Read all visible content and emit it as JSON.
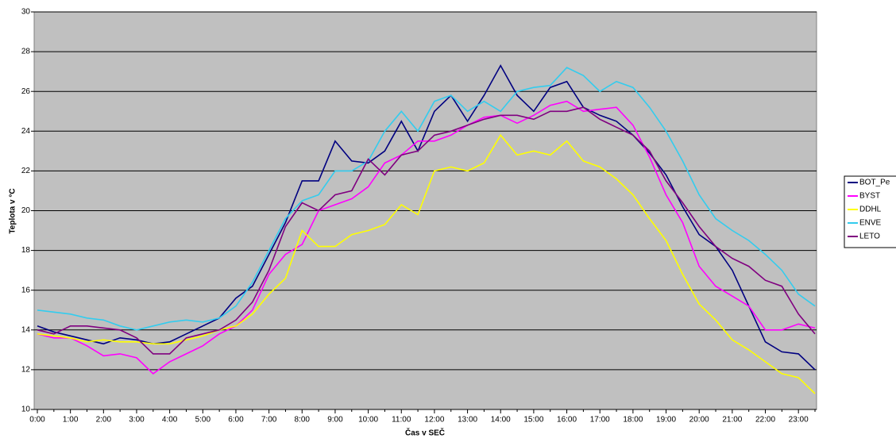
{
  "chart_data": {
    "type": "line",
    "x_label": "Čas v SEČ",
    "y_label": "Teplota v °C",
    "categories": [
      "0:00",
      null,
      "1:00",
      null,
      "2:00",
      null,
      "3:00",
      null,
      "4:00",
      null,
      "5:00",
      null,
      "6:00",
      null,
      "7:00",
      null,
      "8:00",
      null,
      "9:00",
      null,
      "10:00",
      null,
      "11:00",
      null,
      "12:00",
      null,
      "13:00",
      null,
      "14:00",
      null,
      "15:00",
      null,
      "16:00",
      null,
      "17:00",
      null,
      "18:00",
      null,
      "19:00",
      null,
      "20:00",
      null,
      "21:00",
      null,
      "22:00",
      null,
      "23:00",
      null
    ],
    "series": [
      {
        "name": "BOT_Pe",
        "color": "#000080",
        "values": [
          14.2,
          13.9,
          13.7,
          13.5,
          13.3,
          13.6,
          13.5,
          13.3,
          13.4,
          13.8,
          14.2,
          14.6,
          15.6,
          16.2,
          17.8,
          19.4,
          21.5,
          21.5,
          23.5,
          22.5,
          22.4,
          23.0,
          24.5,
          23.0,
          25.0,
          25.8,
          24.5,
          25.8,
          27.3,
          25.8,
          25.0,
          26.2,
          26.5,
          25.2,
          24.8,
          24.5,
          23.8,
          22.9,
          21.8,
          20.2,
          18.8,
          18.2,
          17.0,
          15.2,
          13.4,
          12.9,
          12.8,
          12.0
        ]
      },
      {
        "name": "BYST",
        "color": "#ff00ff",
        "values": [
          13.8,
          13.6,
          13.6,
          13.2,
          12.7,
          12.8,
          12.6,
          11.8,
          12.4,
          12.8,
          13.2,
          13.8,
          14.2,
          15.0,
          16.8,
          17.8,
          18.3,
          20.0,
          20.3,
          20.6,
          21.2,
          22.4,
          22.8,
          23.5,
          23.5,
          23.8,
          24.3,
          24.7,
          24.8,
          24.4,
          24.8,
          25.3,
          25.5,
          25.0,
          25.1,
          25.2,
          24.3,
          22.7,
          20.8,
          19.4,
          17.2,
          16.2,
          15.7,
          15.2,
          14.0,
          14.0,
          14.3,
          14.1
        ]
      },
      {
        "name": "DDHL",
        "color": "#ffff00",
        "values": [
          13.8,
          13.7,
          13.6,
          13.4,
          13.5,
          13.4,
          13.4,
          13.3,
          13.3,
          13.5,
          13.7,
          14.0,
          14.2,
          14.8,
          15.8,
          16.6,
          19.0,
          18.2,
          18.2,
          18.8,
          19.0,
          19.3,
          20.3,
          19.8,
          22.0,
          22.2,
          22.0,
          22.4,
          23.8,
          22.8,
          23.0,
          22.8,
          23.5,
          22.5,
          22.2,
          21.6,
          20.8,
          19.6,
          18.5,
          16.8,
          15.3,
          14.5,
          13.5,
          13.0,
          12.4,
          11.8,
          11.6,
          10.8
        ]
      },
      {
        "name": "ENVE",
        "color": "#33ccee",
        "values": [
          15.0,
          14.9,
          14.8,
          14.6,
          14.5,
          14.2,
          14.0,
          14.2,
          14.4,
          14.5,
          14.4,
          14.6,
          15.2,
          16.4,
          18.0,
          19.6,
          20.5,
          20.8,
          22.0,
          22.0,
          22.5,
          24.0,
          25.0,
          24.0,
          25.5,
          25.8,
          25.0,
          25.5,
          25.0,
          26.0,
          26.2,
          26.3,
          27.2,
          26.8,
          26.0,
          26.5,
          26.2,
          25.2,
          24.0,
          22.5,
          20.8,
          19.6,
          19.0,
          18.5,
          17.8,
          17.0,
          15.8,
          15.2
        ]
      },
      {
        "name": "LETO",
        "color": "#800080",
        "values": [
          14.0,
          13.8,
          14.2,
          14.2,
          14.1,
          14.0,
          13.6,
          12.8,
          12.8,
          13.6,
          13.8,
          14.0,
          14.5,
          15.4,
          17.0,
          19.2,
          20.4,
          20.0,
          20.8,
          21.0,
          22.6,
          21.8,
          22.8,
          23.0,
          23.8,
          24.0,
          24.3,
          24.6,
          24.8,
          24.8,
          24.6,
          25.0,
          25.0,
          25.2,
          24.6,
          24.2,
          23.8,
          23.0,
          21.5,
          20.4,
          19.2,
          18.2,
          17.6,
          17.2,
          16.5,
          16.2,
          14.8,
          13.8
        ]
      }
    ],
    "ylim": [
      10,
      30
    ],
    "yticks": [
      10,
      12,
      14,
      16,
      18,
      20,
      22,
      24,
      26,
      28,
      30
    ],
    "grid": true,
    "legend": "right"
  }
}
